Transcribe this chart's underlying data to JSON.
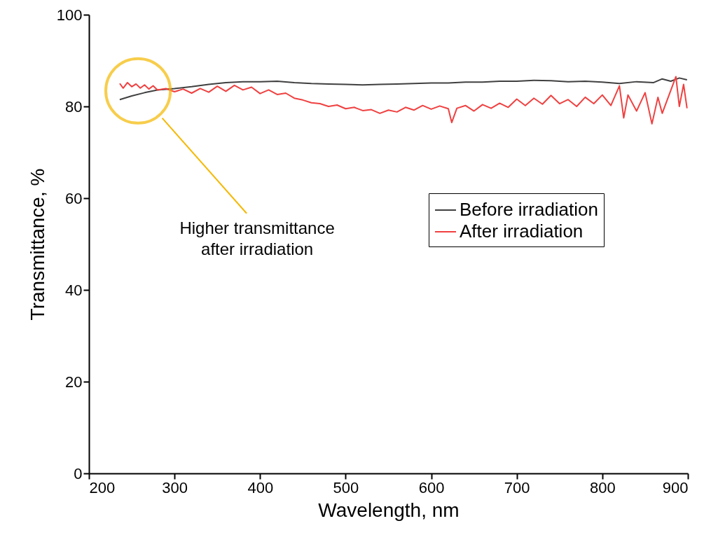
{
  "chart_data": {
    "type": "line",
    "xlabel": "Wavelength, nm",
    "ylabel": "Transmittance, %",
    "xlim": [
      200,
      900
    ],
    "xticks": [
      200,
      300,
      400,
      500,
      600,
      700,
      800,
      900
    ],
    "ylim": [
      0,
      100
    ],
    "yticks": [
      0,
      20,
      40,
      60,
      80,
      100
    ],
    "grid": false,
    "legend": "right",
    "line_style": "solid",
    "marker": "none",
    "annotations": [
      "Higher transmittance\nafter irradiation"
    ],
    "series": [
      {
        "name": "Before irradiation",
        "color": "#404040",
        "x": [
          236,
          250,
          265,
          280,
          300,
          320,
          340,
          360,
          380,
          400,
          420,
          440,
          460,
          480,
          500,
          520,
          540,
          560,
          580,
          600,
          620,
          640,
          660,
          680,
          700,
          720,
          740,
          760,
          780,
          800,
          820,
          840,
          860,
          870,
          880,
          890,
          899
        ],
        "values": [
          81.5,
          82.3,
          83.0,
          83.6,
          83.9,
          84.3,
          84.8,
          85.2,
          85.4,
          85.4,
          85.5,
          85.2,
          85.0,
          84.9,
          84.8,
          84.7,
          84.8,
          84.9,
          85.0,
          85.1,
          85.1,
          85.3,
          85.3,
          85.5,
          85.5,
          85.7,
          85.6,
          85.4,
          85.5,
          85.3,
          85.0,
          85.4,
          85.2,
          86.0,
          85.5,
          86.2,
          85.8
        ]
      },
      {
        "name": "After irradiation",
        "color": "#f04040",
        "x": [
          236,
          240,
          245,
          250,
          255,
          260,
          265,
          270,
          275,
          280,
          290,
          300,
          310,
          320,
          330,
          340,
          350,
          360,
          370,
          380,
          390,
          400,
          410,
          420,
          430,
          440,
          450,
          460,
          470,
          480,
          490,
          500,
          510,
          520,
          530,
          540,
          550,
          560,
          570,
          580,
          590,
          600,
          610,
          620,
          624,
          630,
          640,
          650,
          660,
          670,
          680,
          690,
          700,
          710,
          720,
          730,
          740,
          750,
          760,
          770,
          780,
          790,
          800,
          810,
          820,
          825,
          830,
          840,
          850,
          858,
          865,
          870,
          880,
          886,
          890,
          895,
          899
        ],
        "values": [
          85.0,
          84.0,
          85.2,
          84.3,
          84.9,
          84.0,
          84.7,
          83.8,
          84.5,
          83.6,
          83.9,
          83.2,
          83.8,
          82.9,
          83.9,
          83.1,
          84.4,
          83.3,
          84.6,
          83.6,
          84.2,
          82.8,
          83.6,
          82.6,
          82.9,
          81.8,
          81.4,
          80.8,
          80.6,
          80.0,
          80.3,
          79.5,
          79.8,
          79.1,
          79.3,
          78.5,
          79.2,
          78.8,
          79.8,
          79.2,
          80.2,
          79.4,
          80.1,
          79.5,
          76.5,
          79.6,
          80.2,
          79.0,
          80.4,
          79.6,
          80.7,
          79.8,
          81.6,
          80.2,
          81.8,
          80.5,
          82.4,
          80.6,
          81.5,
          80.0,
          82.0,
          80.6,
          82.5,
          80.2,
          84.5,
          77.5,
          82.5,
          79.0,
          83.0,
          76.2,
          82.0,
          78.5,
          83.5,
          86.5,
          80.0,
          84.8,
          79.6
        ]
      }
    ]
  }
}
